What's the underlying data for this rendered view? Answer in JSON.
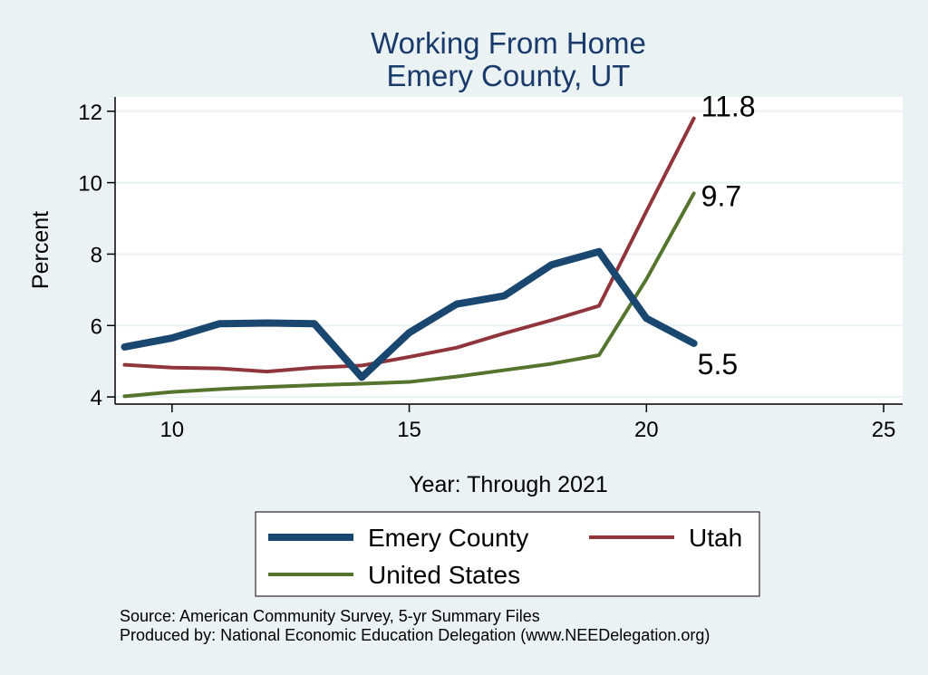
{
  "chart_data": {
    "type": "line",
    "title": [
      "Working From Home",
      "Emery County, UT"
    ],
    "xlabel": "Year: Through 2021",
    "ylabel": "Percent",
    "xlim": [
      8.8,
      25.4
    ],
    "ylim": [
      3.8,
      12.4
    ],
    "xticks": [
      10,
      15,
      20,
      25
    ],
    "yticks": [
      4,
      6,
      8,
      10,
      12
    ],
    "grid": true,
    "legend_position": "bottom",
    "series": [
      {
        "name": "Emery County",
        "color": "#1a476f",
        "x": [
          9,
          10,
          11,
          12,
          13,
          14,
          15,
          16,
          17,
          18,
          19,
          20,
          21
        ],
        "y": [
          5.4,
          5.65,
          6.05,
          6.07,
          6.05,
          4.55,
          5.8,
          6.6,
          6.83,
          7.7,
          8.07,
          6.2,
          5.5
        ],
        "end_label": "5.5"
      },
      {
        "name": "Utah",
        "color": "#90353b",
        "x": [
          9,
          10,
          11,
          12,
          13,
          14,
          15,
          16,
          17,
          18,
          19,
          20,
          21
        ],
        "y": [
          4.9,
          4.82,
          4.8,
          4.71,
          4.82,
          4.88,
          5.12,
          5.38,
          5.78,
          6.15,
          6.55,
          9.2,
          11.8
        ],
        "end_label": "11.8"
      },
      {
        "name": "United States",
        "color": "#55752f",
        "x": [
          9,
          10,
          11,
          12,
          13,
          14,
          15,
          16,
          17,
          18,
          19,
          20,
          21
        ],
        "y": [
          4.02,
          4.14,
          4.22,
          4.28,
          4.33,
          4.37,
          4.42,
          4.57,
          4.75,
          4.93,
          5.17,
          7.3,
          9.7
        ],
        "end_label": "9.7"
      }
    ]
  },
  "footer": {
    "source": "Source: American Community Survey, 5-yr Summary Files",
    "produced": "Produced by: National Economic Education Delegation (www.NEEDelegation.org)"
  }
}
